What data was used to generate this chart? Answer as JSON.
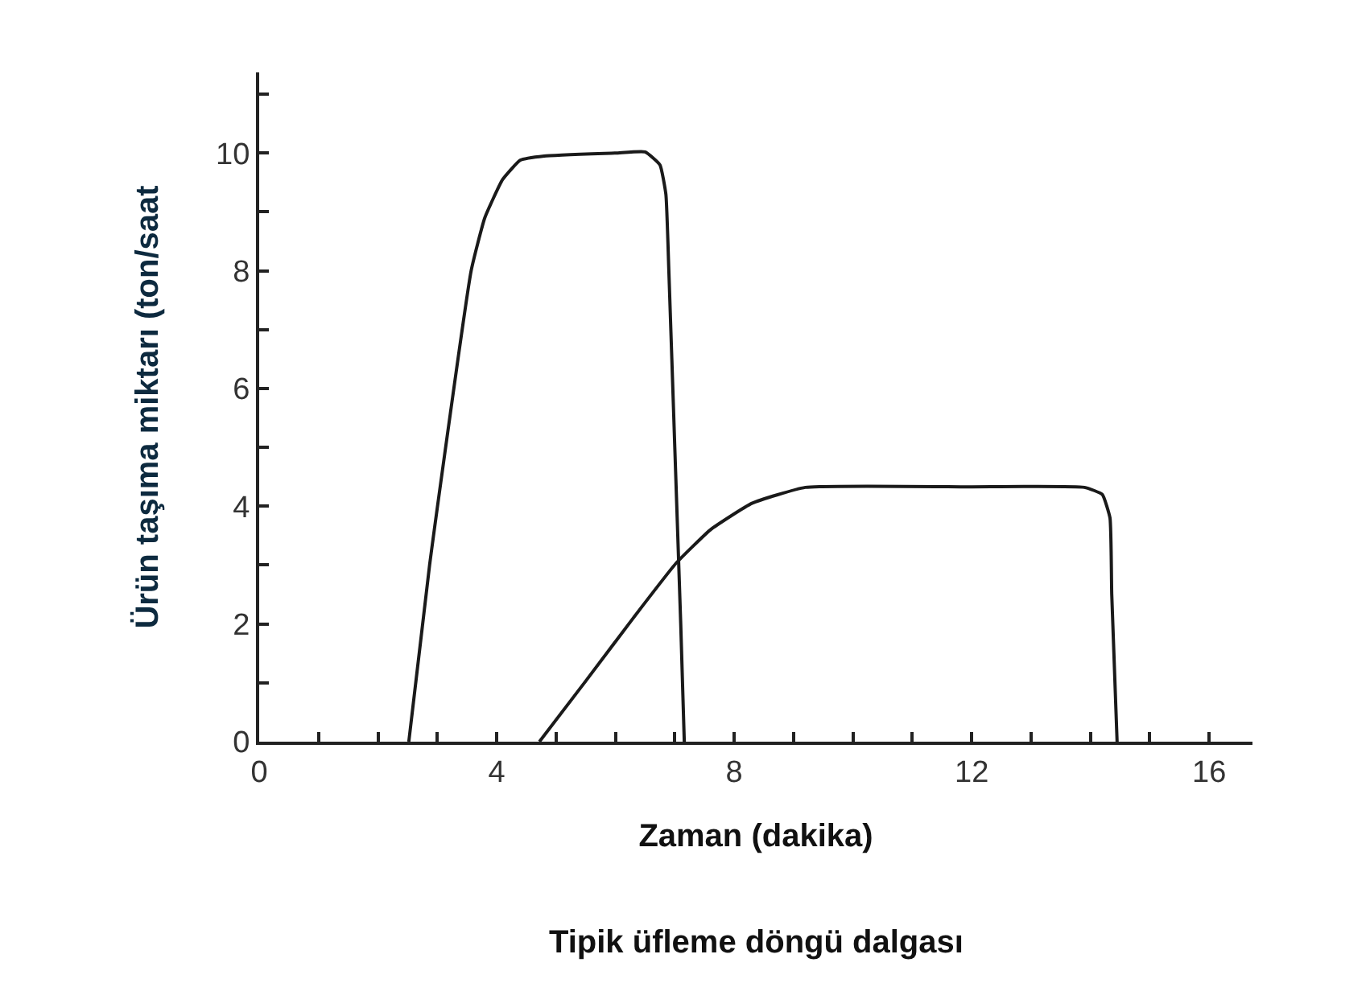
{
  "chart_data": {
    "type": "line",
    "title": "Tipik üfleme döngü dalgası",
    "xlabel": "Zaman (dakika)",
    "ylabel": "Ürün taşıma miktarı (ton/saat",
    "xlim": [
      0,
      16.73
    ],
    "ylim": [
      0,
      11.37
    ],
    "xticks": [
      0,
      {
        "value": 1,
        "label": null
      },
      {
        "value": 2,
        "label": null
      },
      {
        "value": 3,
        "label": null
      },
      4,
      {
        "value": 5,
        "label": null
      },
      {
        "value": 6,
        "label": null
      },
      {
        "value": 7,
        "label": null
      },
      8,
      {
        "value": 9,
        "label": null
      },
      {
        "value": 10,
        "label": null
      },
      {
        "value": 11,
        "label": null
      },
      12,
      {
        "value": 13,
        "label": null
      },
      {
        "value": 14,
        "label": null
      },
      {
        "value": 15,
        "label": null
      },
      16
    ],
    "yticks": [
      0,
      {
        "value": 1,
        "label": null
      },
      2,
      {
        "value": 3,
        "label": null
      },
      4,
      {
        "value": 5,
        "label": null
      },
      6,
      {
        "value": 7,
        "label": null
      },
      8,
      {
        "value": 9,
        "label": null
      },
      10,
      {
        "value": 11,
        "label": null
      }
    ],
    "marker": "none",
    "line_style": "solid",
    "series": [
      {
        "color": "#1a1a1a",
        "x": [
          2.52,
          2.87,
          3.57,
          3.8,
          4.1,
          4.4,
          4.8,
          6.0,
          6.5,
          6.75,
          6.85,
          6.9,
          7.0,
          7.1,
          7.16
        ],
        "values": [
          0,
          3.0,
          8.0,
          8.9,
          9.55,
          9.88,
          9.95,
          10.0,
          10.02,
          9.8,
          9.3,
          8.0,
          5.0,
          2.0,
          0
        ]
      },
      {
        "color": "#1a1a1a",
        "x": [
          4.72,
          5.5,
          6.3,
          7.02,
          7.6,
          8.3,
          9.2,
          12.0,
          13.9,
          14.2,
          14.33,
          14.36,
          14.45
        ],
        "values": [
          0,
          1.03,
          2.1,
          3.03,
          3.6,
          4.05,
          4.32,
          4.33,
          4.32,
          4.2,
          3.8,
          2.5,
          0
        ]
      }
    ]
  }
}
